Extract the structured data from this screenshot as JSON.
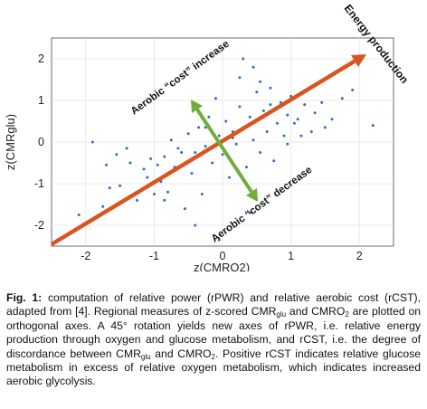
{
  "figure": {
    "chart_data": {
      "type": "scatter",
      "xlabel": "z(CMRO2)",
      "ylabel": "z(CMRglu)",
      "xlim": [
        -2.5,
        2.5
      ],
      "ylim": [
        -2.5,
        2.5
      ],
      "xticks": [
        "-2",
        "-1",
        "0",
        "1",
        "2"
      ],
      "yticks": [
        "-2",
        "-1",
        "0",
        "1",
        "2"
      ],
      "grid": true,
      "point_color": "#2a6fc9",
      "points": [
        [
          -2.1,
          -1.75
        ],
        [
          -1.75,
          -1.55
        ],
        [
          -1.65,
          -1.1
        ],
        [
          -1.9,
          0.0
        ],
        [
          -1.7,
          -0.55
        ],
        [
          -1.5,
          -1.05
        ],
        [
          -1.4,
          -0.15
        ],
        [
          -1.35,
          -0.5
        ],
        [
          -1.25,
          -1.4
        ],
        [
          -1.15,
          -0.65
        ],
        [
          -1.1,
          -0.85
        ],
        [
          -1.05,
          -0.4
        ],
        [
          -1.0,
          -1.25
        ],
        [
          -0.95,
          -0.55
        ],
        [
          -0.9,
          -0.95
        ],
        [
          -0.85,
          -0.35
        ],
        [
          -0.8,
          -1.2
        ],
        [
          -0.75,
          0.05
        ],
        [
          -0.7,
          -0.6
        ],
        [
          -0.65,
          -0.15
        ],
        [
          -0.55,
          -1.6
        ],
        [
          -0.5,
          0.2
        ],
        [
          -0.45,
          -0.75
        ],
        [
          -0.4,
          -0.25
        ],
        [
          -0.35,
          0.35
        ],
        [
          -0.4,
          -2.0
        ],
        [
          -0.3,
          -1.25
        ],
        [
          -0.25,
          -0.1
        ],
        [
          -0.2,
          0.6
        ],
        [
          -0.15,
          -0.5
        ],
        [
          -0.1,
          1.05
        ],
        [
          -0.05,
          0.15
        ],
        [
          0.0,
          -0.3
        ],
        [
          0.05,
          0.5
        ],
        [
          0.1,
          -0.85
        ],
        [
          0.15,
          0.25
        ],
        [
          0.2,
          -0.05
        ],
        [
          0.25,
          0.85
        ],
        [
          0.3,
          0.35
        ],
        [
          0.35,
          -0.6
        ],
        [
          0.4,
          0.6
        ],
        [
          0.45,
          0.05
        ],
        [
          0.5,
          1.2
        ],
        [
          0.55,
          -0.25
        ],
        [
          0.6,
          0.75
        ],
        [
          0.65,
          0.25
        ],
        [
          0.7,
          1.3
        ],
        [
          0.75,
          -0.45
        ],
        [
          0.8,
          0.45
        ],
        [
          0.85,
          0.95
        ],
        [
          0.9,
          0.15
        ],
        [
          0.95,
          0.65
        ],
        [
          1.0,
          1.1
        ],
        [
          1.05,
          0.45
        ],
        [
          1.1,
          0.55
        ],
        [
          1.2,
          0.9
        ],
        [
          1.3,
          0.25
        ],
        [
          1.35,
          0.7
        ],
        [
          1.45,
          0.95
        ],
        [
          1.5,
          0.35
        ],
        [
          1.6,
          0.55
        ],
        [
          1.75,
          1.05
        ],
        [
          1.9,
          1.25
        ],
        [
          2.2,
          0.4
        ],
        [
          0.3,
          2.0
        ],
        [
          0.45,
          1.8
        ],
        [
          -0.05,
          -2.35
        ],
        [
          0.4,
          -1.7
        ],
        [
          0.25,
          1.55
        ],
        [
          -0.6,
          -0.25
        ],
        [
          0.15,
          0.1
        ],
        [
          -0.25,
          0.35
        ],
        [
          0.7,
          0.9
        ],
        [
          0.95,
          -0.05
        ],
        [
          -0.85,
          -1.4
        ],
        [
          1.15,
          0.15
        ],
        [
          0.55,
          1.45
        ],
        [
          -1.55,
          -0.3
        ]
      ]
    },
    "arrow_energy": {
      "label": "Energy production",
      "color": "#d9541e"
    },
    "arrow_cost": {
      "color": "#72ad3c"
    },
    "label_cost_increase": "Aerobic “cost” increase",
    "label_cost_decrease": "Aerobic “cost” decrease"
  },
  "caption": {
    "prefix": "Fig. 1:",
    "text_1": " computation of relative power (rPWR) and relative aerobic cost (rCST), adapted from [4]. Regional measures of z-scored CMR",
    "sub_glu_1": "glu",
    "text_2": " and CMRO",
    "sub_2_1": "2",
    "text_3": " are plotted on orthogonal axes. A 45° rotation yields new axes of rPWR, i.e. relative energy production through oxygen and glucose metabolism, and rCST, i.e. the degree of discordance between CMR",
    "sub_glu_2": "glu",
    "text_4": " and CMRO",
    "sub_2_2": "2",
    "text_5": ". Positive rCST indicates relative glucose metabolism in excess of relative oxygen metabolism, which indicates increased aerobic glycolysis."
  }
}
